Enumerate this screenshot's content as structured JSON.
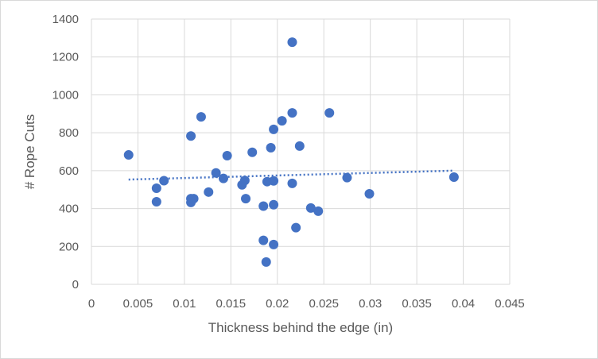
{
  "chart_data": {
    "type": "scatter",
    "title": "",
    "xlabel": "Thickness behind the edge (in)",
    "ylabel": "# Rope Cuts",
    "xlim": [
      0,
      0.045
    ],
    "ylim": [
      0,
      1400
    ],
    "x_ticks": [
      "0",
      "0.005",
      "0.01",
      "0.015",
      "0.02",
      "0.025",
      "0.03",
      "0.035",
      "0.04",
      "0.045"
    ],
    "y_ticks": [
      "0",
      "200",
      "400",
      "600",
      "800",
      "1000",
      "1200",
      "1400"
    ],
    "grid": true,
    "marker_color": "#4472c4",
    "trendline": {
      "type": "linear",
      "style": "dotted",
      "color": "#4472c4",
      "x": [
        0.004,
        0.039
      ],
      "y": [
        553,
        600
      ]
    },
    "series": [
      {
        "points": [
          [
            0.004,
            683
          ],
          [
            0.007,
            507
          ],
          [
            0.007,
            436
          ],
          [
            0.0078,
            547
          ],
          [
            0.0107,
            783
          ],
          [
            0.0107,
            432
          ],
          [
            0.0107,
            452
          ],
          [
            0.011,
            452
          ],
          [
            0.0118,
            884
          ],
          [
            0.0126,
            487
          ],
          [
            0.0134,
            588
          ],
          [
            0.0142,
            559
          ],
          [
            0.0146,
            679
          ],
          [
            0.0162,
            525
          ],
          [
            0.0165,
            548
          ],
          [
            0.0166,
            452
          ],
          [
            0.0173,
            697
          ],
          [
            0.0185,
            413
          ],
          [
            0.0185,
            232
          ],
          [
            0.0188,
            118
          ],
          [
            0.0189,
            542
          ],
          [
            0.0193,
            721
          ],
          [
            0.0196,
            818
          ],
          [
            0.0196,
            546
          ],
          [
            0.0196,
            420
          ],
          [
            0.0196,
            210
          ],
          [
            0.0205,
            863
          ],
          [
            0.0216,
            1278
          ],
          [
            0.0216,
            905
          ],
          [
            0.0216,
            533
          ],
          [
            0.022,
            299
          ],
          [
            0.0224,
            730
          ],
          [
            0.0236,
            403
          ],
          [
            0.0244,
            386
          ],
          [
            0.0256,
            905
          ],
          [
            0.0275,
            563
          ],
          [
            0.0299,
            478
          ],
          [
            0.039,
            566
          ]
        ]
      }
    ]
  }
}
